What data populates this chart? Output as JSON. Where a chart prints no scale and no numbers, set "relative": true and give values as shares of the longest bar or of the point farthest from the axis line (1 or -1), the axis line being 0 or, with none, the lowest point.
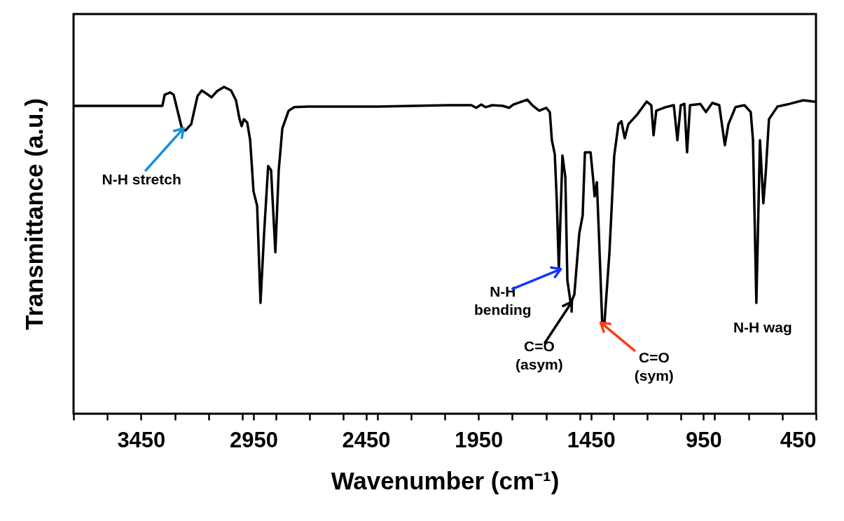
{
  "chart_data": {
    "type": "line",
    "relative": true,
    "xlabel": "Wavenumber (cm⁻¹)",
    "ylabel": "Transmittance (a.u.)",
    "xlim": [
      3750,
      450
    ],
    "xticks": [
      {
        "value": 3750,
        "label": null
      },
      {
        "value": 3600,
        "label": null
      },
      3450,
      {
        "value": 3300,
        "label": null
      },
      {
        "value": 3150,
        "label": null
      },
      {
        "value": 3000,
        "label": null
      },
      2950,
      {
        "value": 2850,
        "label": null
      },
      {
        "value": 2700,
        "label": null
      },
      {
        "value": 2550,
        "label": null
      },
      2450,
      {
        "value": 2400,
        "label": null
      },
      {
        "value": 2250,
        "label": null
      },
      {
        "value": 2100,
        "label": null
      },
      1950,
      {
        "value": 1800,
        "label": null
      },
      {
        "value": 1650,
        "label": null
      },
      {
        "value": 1500,
        "label": null
      },
      1450,
      {
        "value": 1350,
        "label": null
      },
      {
        "value": 1200,
        "label": null
      },
      {
        "value": 1050,
        "label": null
      },
      950,
      {
        "value": 900,
        "label": null
      },
      {
        "value": 750,
        "label": null
      },
      {
        "value": 600,
        "label": null
      },
      450
    ],
    "grid": false,
    "tick_labels": "x",
    "marker": "none",
    "line_style": "solid",
    "x": [
      3745,
      3355,
      3345,
      3320,
      3305,
      3267,
      3252,
      3227,
      3199,
      3180,
      3152,
      3137,
      3112,
      3081,
      3050,
      3028,
      3012,
      3003,
      2993,
      2978,
      2965,
      2950,
      2934,
      2919,
      2903,
      2885,
      2872,
      2853,
      2838,
      2822,
      2794,
      2769,
      2707,
      2396,
      2084,
      1982,
      1960,
      1938,
      1919,
      1888,
      1842,
      1814,
      1795,
      1733,
      1711,
      1680,
      1649,
      1633,
      1624,
      1611,
      1602,
      1593,
      1577,
      1564,
      1555,
      1540,
      1524,
      1502,
      1487,
      1477,
      1452,
      1440,
      1434,
      1424,
      1415,
      1400,
      1390,
      1368,
      1347,
      1328,
      1315,
      1300,
      1284,
      1244,
      1203,
      1182,
      1172,
      1160,
      1119,
      1082,
      1066,
      1051,
      1035,
      1023,
      1010,
      964,
      939,
      911,
      880,
      855,
      839,
      808,
      768,
      740,
      730,
      715,
      699,
      684,
      674,
      659,
      621,
      568,
      506,
      456
    ],
    "series": [
      {
        "color": "#000000",
        "values": [
          0.942,
          0.942,
          0.976,
          0.983,
          0.976,
          0.869,
          0.867,
          0.886,
          0.972,
          0.989,
          0.976,
          0.968,
          0.987,
          1.0,
          0.989,
          0.959,
          0.901,
          0.88,
          0.901,
          0.891,
          0.837,
          0.68,
          0.637,
          0.339,
          0.552,
          0.758,
          0.745,
          0.494,
          0.745,
          0.873,
          0.927,
          0.938,
          0.94,
          0.94,
          0.944,
          0.944,
          0.936,
          0.946,
          0.938,
          0.944,
          0.942,
          0.936,
          0.946,
          0.961,
          0.944,
          0.927,
          0.936,
          0.923,
          0.837,
          0.794,
          0.65,
          0.44,
          0.79,
          0.723,
          0.408,
          0.337,
          0.365,
          0.552,
          0.607,
          0.8,
          0.8,
          0.715,
          0.665,
          0.708,
          0.552,
          0.275,
          0.279,
          0.494,
          0.788,
          0.886,
          0.895,
          0.843,
          0.886,
          0.916,
          0.955,
          0.944,
          0.852,
          0.927,
          0.938,
          0.944,
          0.837,
          0.944,
          0.948,
          0.8,
          0.944,
          0.948,
          0.923,
          0.951,
          0.944,
          0.822,
          0.886,
          0.938,
          0.944,
          0.923,
          0.837,
          0.339,
          0.837,
          0.644,
          0.73,
          0.901,
          0.94,
          0.948,
          0.959,
          0.955
        ]
      }
    ],
    "annotations": [
      {
        "text": "N-H stretch",
        "x": 3267,
        "y": 0.869
      },
      {
        "text": "N-H\nbending",
        "x": 1593,
        "y": 0.44
      },
      {
        "text": "C=O\n(asym)",
        "x": 1540,
        "y": 0.337
      },
      {
        "text": "C=O\n(sym)",
        "x": 1400,
        "y": 0.275
      },
      {
        "text": "N-H wag",
        "x": 715,
        "y": 0.339
      }
    ]
  }
}
